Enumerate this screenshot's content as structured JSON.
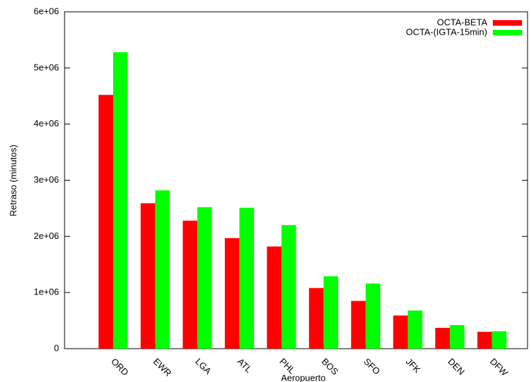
{
  "chart_data": {
    "type": "bar",
    "x_label": "Aeropuerto",
    "y_label": "Retraso (minutos)",
    "categories": [
      "ORD",
      "EWR",
      "LGA",
      "ATL",
      "PHL",
      "BOS",
      "SFO",
      "JFK",
      "DEN",
      "DFW"
    ],
    "series": [
      {
        "name": "OCTA-BETA",
        "color": "#ff0000",
        "values": [
          4520000,
          2590000,
          2280000,
          1970000,
          1820000,
          1080000,
          850000,
          590000,
          370000,
          300000
        ]
      },
      {
        "name": "OCTA-(IGTA-15min)",
        "color": "#00ff00",
        "values": [
          5280000,
          2820000,
          2520000,
          2510000,
          2200000,
          1290000,
          1160000,
          680000,
          420000,
          310000
        ]
      }
    ],
    "ylim": [
      0,
      6000000
    ],
    "yticks": [
      0,
      {
        "value": 1000000,
        "label": "1e+06"
      },
      {
        "value": 2000000,
        "label": "2e+06"
      },
      {
        "value": 3000000,
        "label": "3e+06"
      },
      {
        "value": 4000000,
        "label": "4e+06"
      },
      {
        "value": 5000000,
        "label": "5e+06"
      },
      {
        "value": 6000000,
        "label": "6e+06"
      }
    ],
    "legend": "top-right"
  }
}
